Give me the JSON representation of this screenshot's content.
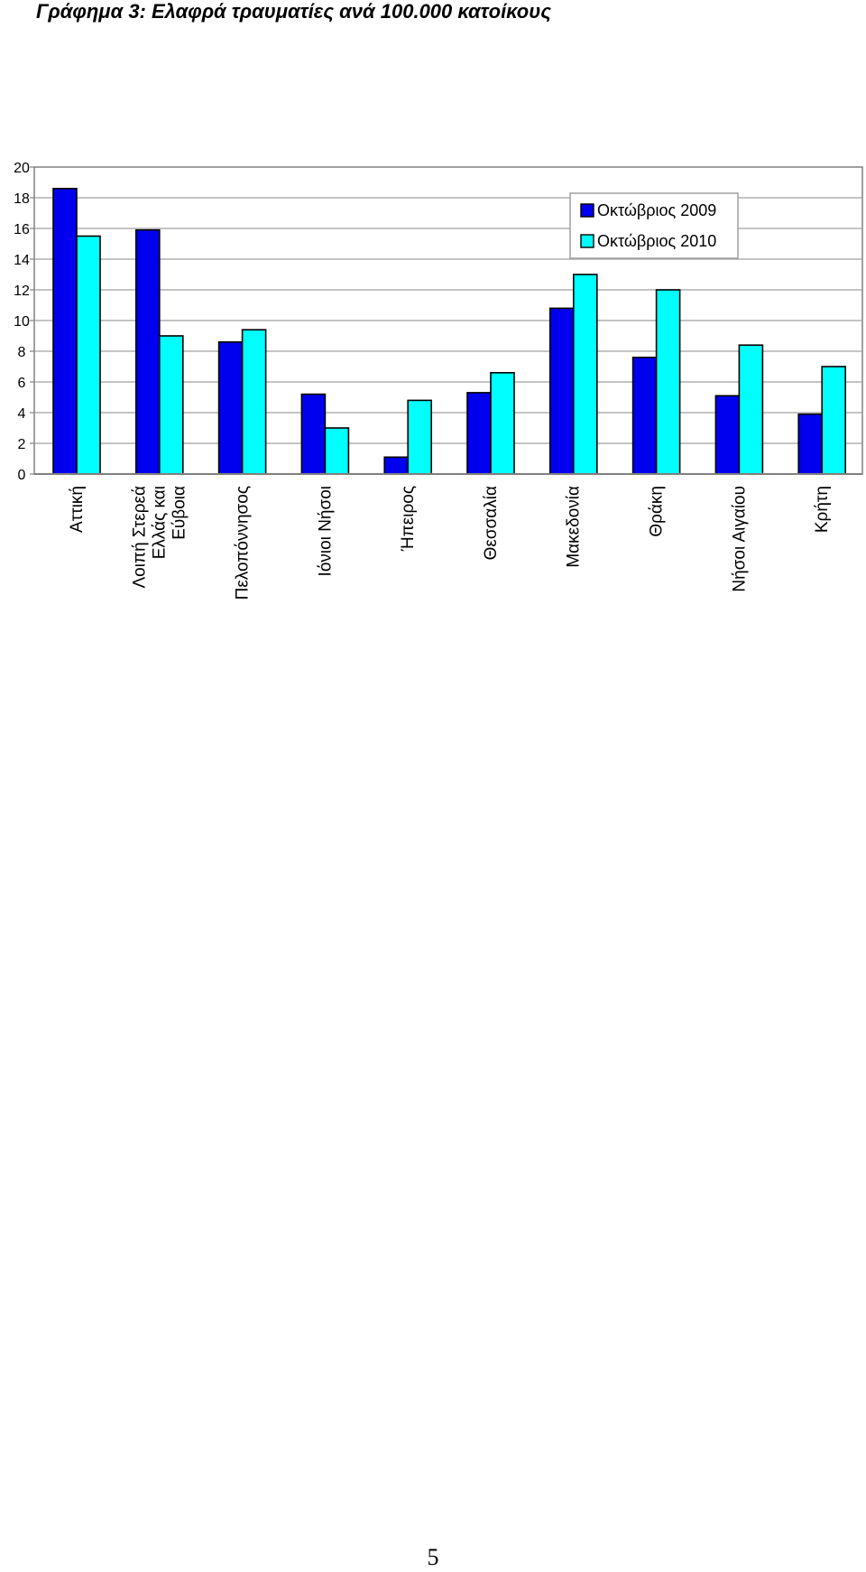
{
  "chart_data": {
    "type": "bar",
    "title": "Γράφημα 3: Ελαφρά τραυματίες ανά 100.000 κατοίκους",
    "categories": [
      [
        "Αττική"
      ],
      [
        "Λοιπή Στερεά",
        "Ελλάς και",
        "Εύβοια"
      ],
      [
        "Πελοπόννησος"
      ],
      [
        "Ιόνιοι Νήσοι"
      ],
      [
        "Ήπειρος"
      ],
      [
        "Θεσσαλία"
      ],
      [
        "Μακεδονία"
      ],
      [
        "Θράκη"
      ],
      [
        "Νήσοι Αιγαίου"
      ],
      [
        "Κρήτη"
      ]
    ],
    "series": [
      {
        "name": "Οκτώβριος 2009",
        "color": "#0000ee",
        "values": [
          18.6,
          15.9,
          8.6,
          5.2,
          1.1,
          5.3,
          10.8,
          7.6,
          5.1,
          3.9
        ]
      },
      {
        "name": "Οκτώβριος 2010",
        "color": "#00ffff",
        "values": [
          15.5,
          9.0,
          9.4,
          3.0,
          4.8,
          6.6,
          13.0,
          12.0,
          8.4,
          7.0
        ]
      }
    ],
    "ylim": [
      0,
      20
    ],
    "yticks": [
      0,
      2,
      4,
      6,
      8,
      10,
      12,
      14,
      16,
      18,
      20
    ],
    "grid": true,
    "legend": "top-right"
  },
  "page_number": "5"
}
